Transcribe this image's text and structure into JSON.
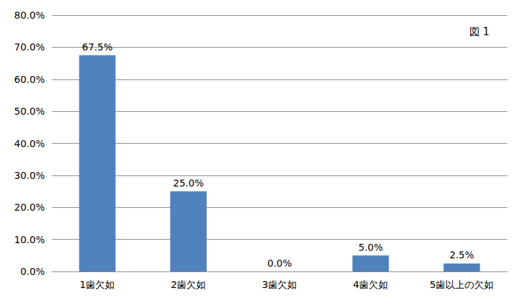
{
  "chart_data": {
    "type": "bar",
    "annotation": "図 1",
    "categories": [
      "1歯欠如",
      "2歯欠如",
      "3歯欠如",
      "4歯欠如",
      "5歯以上の欠如"
    ],
    "values": [
      67.5,
      25.0,
      0.0,
      5.0,
      2.5
    ],
    "value_labels": [
      "67.5%",
      "25.0%",
      "0.0%",
      "5.0%",
      "2.5%"
    ],
    "color": "#4f81bd",
    "ylim": [
      0,
      80
    ],
    "yticks": [
      {
        "value": 0,
        "label": "0.0%"
      },
      {
        "value": 10,
        "label": "10.0%"
      },
      {
        "value": 20,
        "label": "20.0%"
      },
      {
        "value": 30,
        "label": "30.0%"
      },
      {
        "value": 40,
        "label": "40.0%"
      },
      {
        "value": 50,
        "label": "50.0%"
      },
      {
        "value": 60,
        "label": "60.0%"
      },
      {
        "value": 70,
        "label": "70.0%"
      },
      {
        "value": 80,
        "label": "80.0%"
      }
    ],
    "grid": true,
    "data_labels": true
  }
}
